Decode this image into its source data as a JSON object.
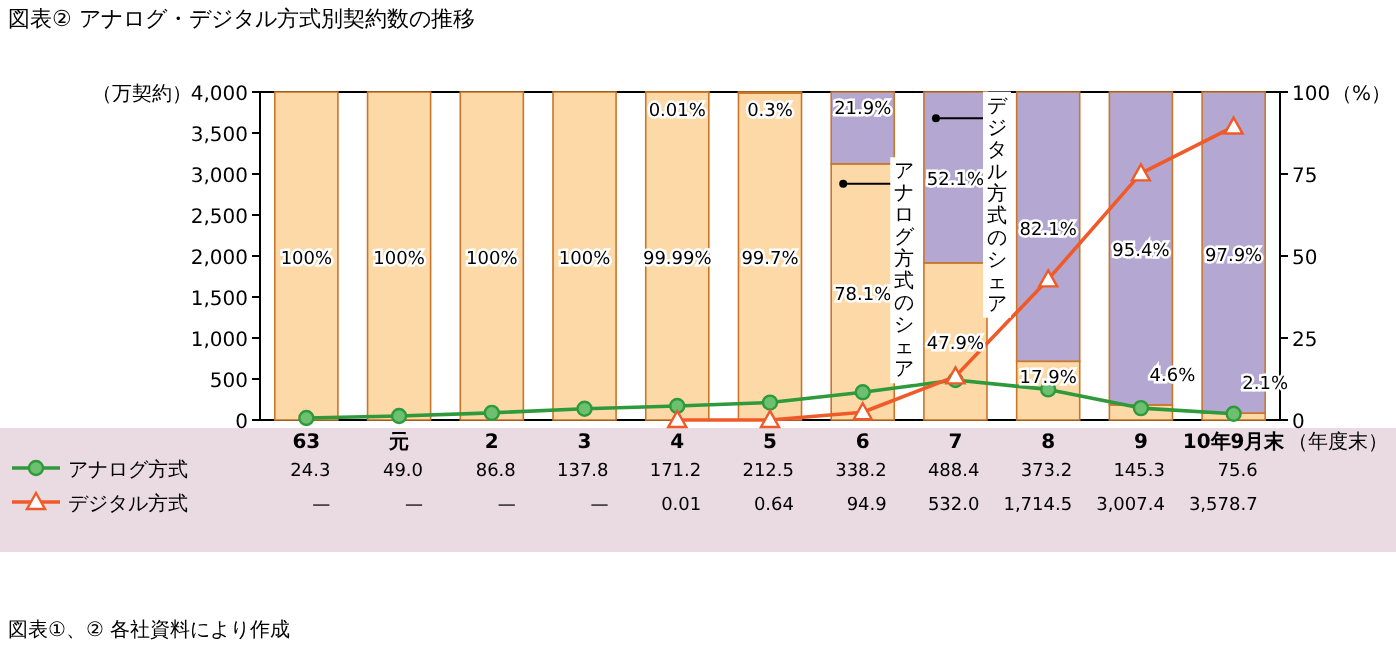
{
  "chart_data": {
    "type": "bar",
    "title": "図表② アナログ・デジタル方式別契約数の推移",
    "xlabel": "（年度末）",
    "ylabel": "（万契約）",
    "y2label": "（%）",
    "annotations": [
      "アナログ方式のシェア",
      "デジタル方式のシェア",
      "図表①、② 各社資料により作成"
    ],
    "categories": [
      "63",
      "元",
      "2",
      "3",
      "4",
      "5",
      "6",
      "7",
      "8",
      "9",
      "10年9月末"
    ],
    "stacked": true,
    "legend": "bottom",
    "ylim": [
      0,
      4000
    ],
    "yticks": [
      0,
      500,
      {
        "value": 1000,
        "label": "1,000"
      },
      {
        "value": 1500,
        "label": "1,500"
      },
      {
        "value": 2000,
        "label": "2,000"
      },
      {
        "value": 2500,
        "label": "2,500"
      },
      {
        "value": 3000,
        "label": "3,000"
      },
      {
        "value": 3500,
        "label": "3,500"
      },
      {
        "value": 4000,
        "label": "4,000"
      }
    ],
    "y2lim": [
      0,
      100
    ],
    "y2ticks": [
      0,
      25,
      50,
      75,
      100
    ],
    "series": [
      {
        "axis": "y2",
        "color": "#fcd9a6",
        "values": [
          100,
          100,
          100,
          100,
          99.99,
          99.7,
          78.1,
          47.9,
          17.9,
          4.6,
          2.1
        ],
        "value_labels": [
          "100%",
          "100%",
          "100%",
          "100%",
          "99.99%",
          "99.7%",
          "78.1%",
          "47.9%",
          "17.9%",
          "4.6%",
          "2.1%"
        ]
      },
      {
        "axis": "y2",
        "color": "#b4a8d2",
        "values": [
          0,
          0,
          0,
          0,
          0.01,
          0.3,
          21.9,
          52.1,
          82.1,
          95.4,
          97.9
        ],
        "value_labels": [
          null,
          null,
          null,
          null,
          "0.01%",
          "0.3%",
          "21.9%",
          "52.1%",
          "82.1%",
          "95.4%",
          "97.9%"
        ]
      },
      {
        "type": "line",
        "axis": "y",
        "name": "アナログ方式",
        "color": "#2f9a3c",
        "marker": "circle",
        "values": [
          24.3,
          49.0,
          86.8,
          137.8,
          171.2,
          212.5,
          338.2,
          488.4,
          373.2,
          145.3,
          75.6
        ],
        "value_labels": [
          "24.3",
          "49.0",
          "86.8",
          "137.8",
          "171.2",
          "212.5",
          "338.2",
          "488.4",
          "373.2",
          "145.3",
          "75.6"
        ]
      },
      {
        "type": "line",
        "axis": "y",
        "name": "デジタル方式",
        "color": "#f05a28",
        "marker": "triangle",
        "values": [
          null,
          null,
          null,
          null,
          0.01,
          0.64,
          94.9,
          532.0,
          1714.5,
          3007.4,
          3578.7
        ],
        "value_labels": [
          "—",
          "—",
          "—",
          "—",
          "0.01",
          "0.64",
          "94.9",
          "532.0",
          "1,714.5",
          "3,007.4",
          "3,578.7"
        ]
      }
    ]
  }
}
